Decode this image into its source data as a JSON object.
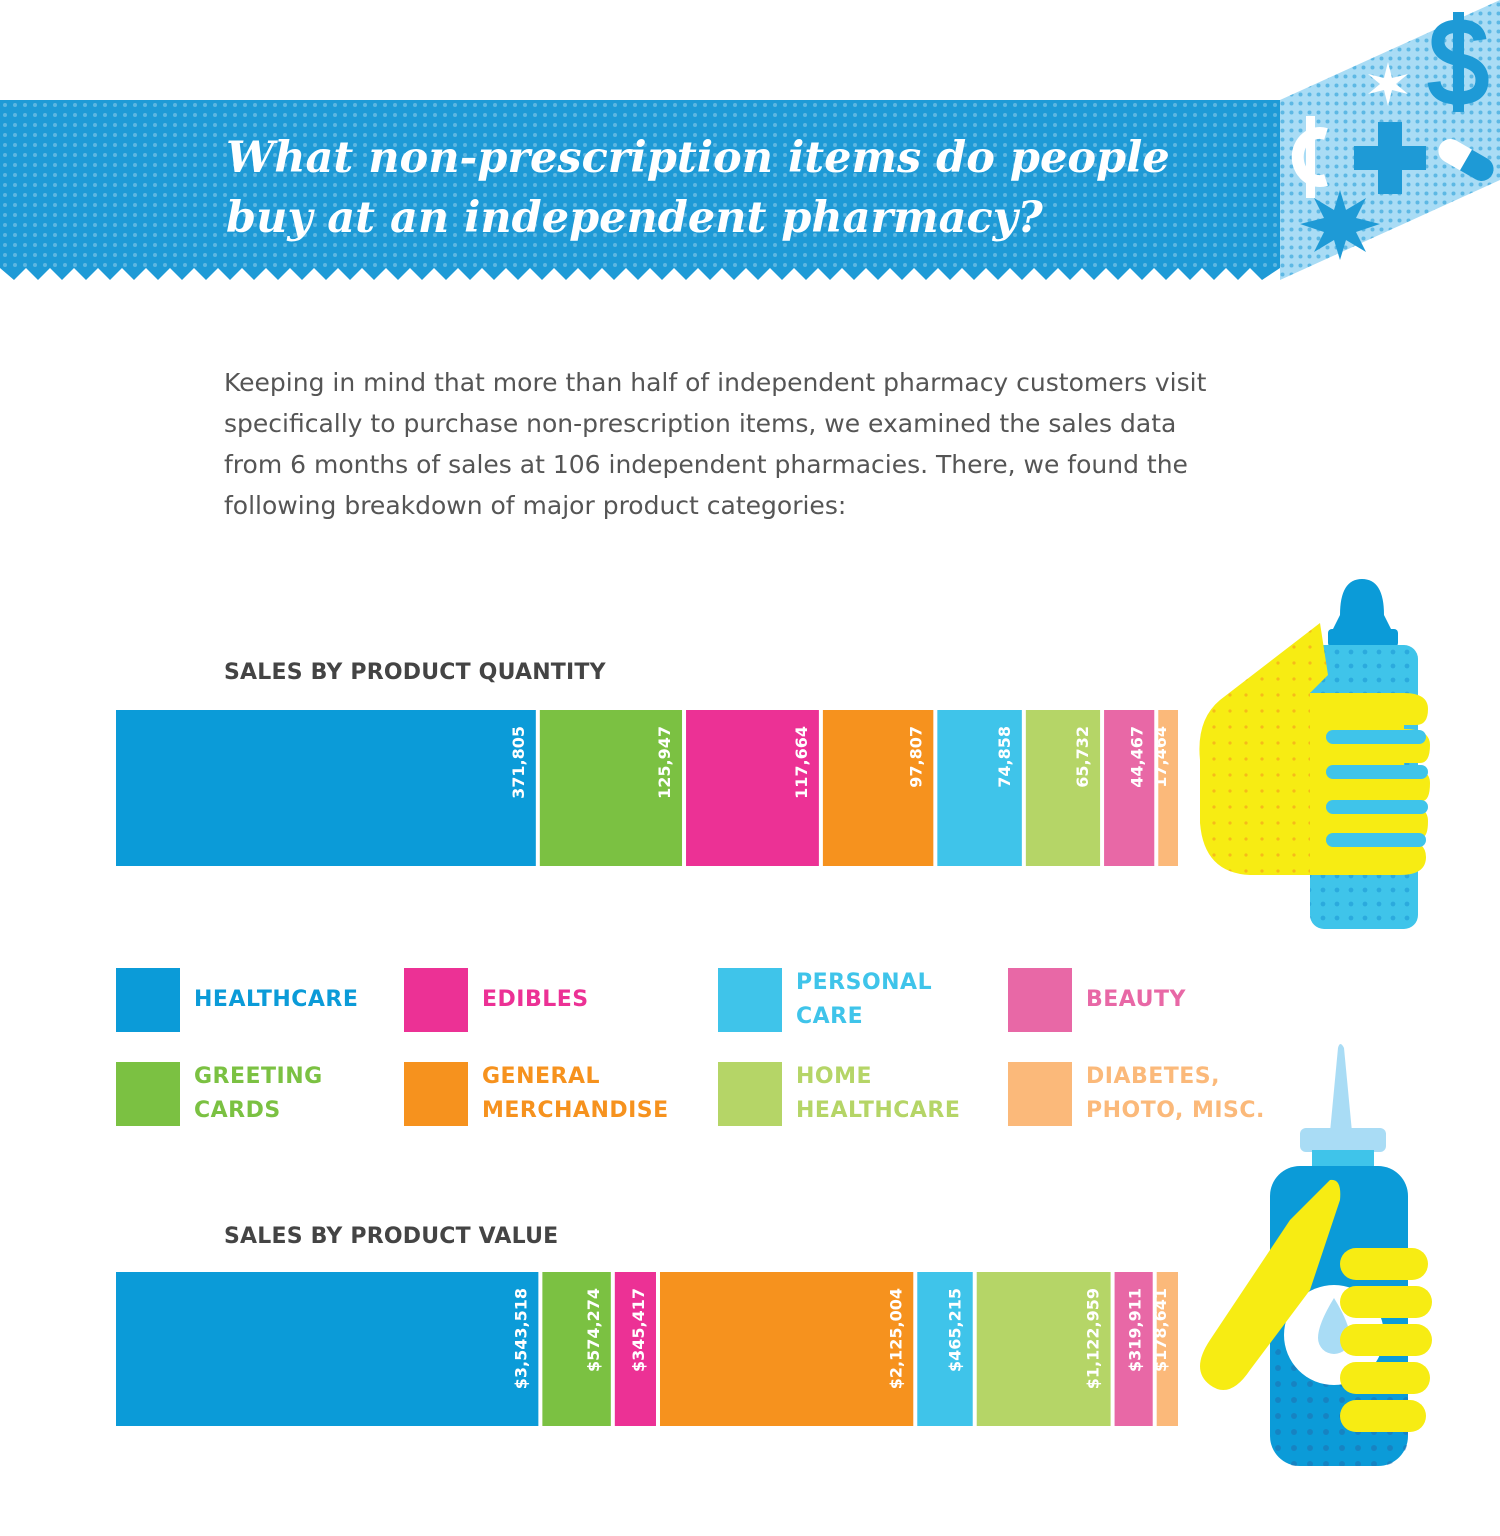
{
  "header": {
    "title": "What non-prescription items do people buy at an independent pharmacy?"
  },
  "intro": {
    "text": "Keeping in mind that more than half of independent pharmacy customers visit specifically to purchase non-prescription items, we examined the sales data from 6 months of sales at 106 independent pharmacies. There, we found the following breakdown of major product categories:"
  },
  "colors": {
    "banner": "#1e9ad6",
    "healthcare": "#0b9bd8",
    "greeting_cards": "#7bc142",
    "edibles": "#ec3195",
    "general_merchandise": "#f6921e",
    "personal_care": "#3fc4ea",
    "home_healthcare": "#b5d567",
    "beauty": "#e868a6",
    "diabetes_photo_misc": "#fbb97a",
    "hand": "#f7ec13"
  },
  "legend": {
    "items": [
      {
        "label": "HEALTHCARE",
        "color": "#0b9bd8"
      },
      {
        "label": "EDIBLES",
        "color": "#ec3195"
      },
      {
        "label": "PERSONAL\nCARE",
        "color": "#3fc4ea"
      },
      {
        "label": "BEAUTY",
        "color": "#e868a6"
      },
      {
        "label": "GREETING\nCARDS",
        "color": "#7bc142"
      },
      {
        "label": "GENERAL\nMERCHANDISE",
        "color": "#f6921e"
      },
      {
        "label": "HOME\nHEALTHCARE",
        "color": "#b5d567"
      },
      {
        "label": "DIABETES,\nPHOTO, MISC.",
        "color": "#fbb97a"
      }
    ]
  },
  "chart_data": [
    {
      "type": "bar",
      "title": "SALES BY PRODUCT QUANTITY",
      "orientation": "stacked-horizontal",
      "categories": [
        "HEALTHCARE",
        "GREETING CARDS",
        "EDIBLES",
        "GENERAL MERCHANDISE",
        "PERSONAL CARE",
        "HOME HEALTHCARE",
        "BEAUTY",
        "DIABETES, PHOTO, MISC."
      ],
      "values": [
        371805,
        125947,
        117664,
        97807,
        74858,
        65732,
        44467,
        17464
      ],
      "labels": [
        "371,805",
        "125,947",
        "117,664",
        "97,807",
        "74,858",
        "65,732",
        "44,467",
        "17,464"
      ],
      "colors": [
        "#0b9bd8",
        "#7bc142",
        "#ec3195",
        "#f6921e",
        "#3fc4ea",
        "#b5d567",
        "#e868a6",
        "#fbb97a"
      ]
    },
    {
      "type": "bar",
      "title": "SALES BY PRODUCT VALUE",
      "orientation": "stacked-horizontal",
      "categories": [
        "HEALTHCARE",
        "GREETING CARDS",
        "EDIBLES",
        "GENERAL MERCHANDISE",
        "PERSONAL CARE",
        "HOME HEALTHCARE",
        "BEAUTY",
        "DIABETES, PHOTO, MISC."
      ],
      "values": [
        3543518,
        574274,
        345417,
        2125004,
        465215,
        1122959,
        319911,
        178641
      ],
      "labels": [
        "$3,543,518",
        "$574,274",
        "$345,417",
        "$2,125,004",
        "$465,215",
        "$1,122,959",
        "$319,911",
        "$178,641"
      ],
      "colors": [
        "#0b9bd8",
        "#7bc142",
        "#ec3195",
        "#f6921e",
        "#3fc4ea",
        "#b5d567",
        "#e868a6",
        "#fbb97a"
      ]
    }
  ]
}
